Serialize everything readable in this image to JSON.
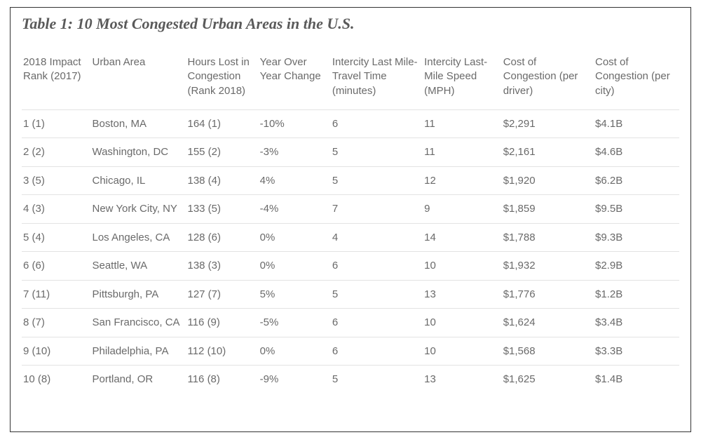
{
  "title": "Table 1: 10 Most Congested Urban Areas in the U.S.",
  "style": {
    "border_color": "#333333",
    "row_divider_color": "#e3e3e3",
    "text_color": "#6a6a6a",
    "title_color": "#5a5a5a",
    "background": "#ffffff",
    "title_fontsize": 22,
    "header_fontsize": 15,
    "cell_fontsize": 15,
    "title_style": "italic"
  },
  "columns": [
    "2018 Impact Rank (2017)",
    "Urban Area",
    "Hours Lost in Congestion (Rank 2018)",
    "Year Over Year Change",
    "Intercity Last Mile-Travel Time (minutes)",
    "Intercity Last-Mile Speed (MPH)",
    "Cost of Congestion (per driver)",
    "Cost of Congestion (per city)"
  ],
  "column_widths_pct": [
    10.5,
    14.5,
    11,
    11,
    14,
    12,
    14,
    13
  ],
  "rows": [
    [
      "1 (1)",
      "Boston, MA",
      "164 (1)",
      "-10%",
      "6",
      "11",
      "$2,291",
      "$4.1B"
    ],
    [
      "2 (2)",
      "Washington, DC",
      "155 (2)",
      "-3%",
      "5",
      "11",
      "$2,161",
      "$4.6B"
    ],
    [
      "3 (5)",
      "Chicago, IL",
      "138 (4)",
      "4%",
      "5",
      "12",
      "$1,920",
      "$6.2B"
    ],
    [
      "4 (3)",
      "New York City, NY",
      "133 (5)",
      "-4%",
      "7",
      "9",
      "$1,859",
      "$9.5B"
    ],
    [
      "5 (4)",
      "Los Angeles, CA",
      "128 (6)",
      "0%",
      "4",
      "14",
      "$1,788",
      "$9.3B"
    ],
    [
      "6 (6)",
      "Seattle, WA",
      "138 (3)",
      "0%",
      "6",
      "10",
      "$1,932",
      "$2.9B"
    ],
    [
      "7 (11)",
      "Pittsburgh, PA",
      "127 (7)",
      "5%",
      "5",
      "13",
      "$1,776",
      "$1.2B"
    ],
    [
      "8 (7)",
      "San Francisco, CA",
      "116 (9)",
      "-5%",
      "6",
      "10",
      "$1,624",
      "$3.4B"
    ],
    [
      "9 (10)",
      "Philadelphia, PA",
      "112 (10)",
      "0%",
      "6",
      "10",
      "$1,568",
      "$3.3B"
    ],
    [
      "10 (8)",
      "Portland, OR",
      "116 (8)",
      "-9%",
      "5",
      "13",
      "$1,625",
      "$1.4B"
    ]
  ]
}
